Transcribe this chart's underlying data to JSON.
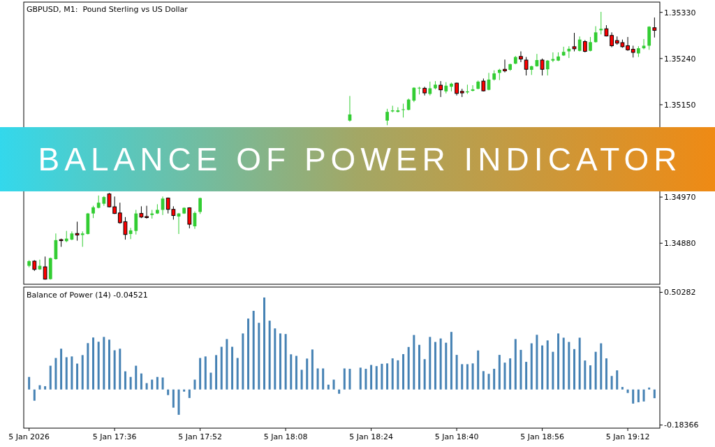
{
  "chart_data": [
    {
      "type": "candlestick",
      "title": "BALANCE OF POWER INDICATOR",
      "subtitle": "GBPUSD, M1:  Pound Sterling vs US Dollar",
      "tick_labels": "y",
      "xlim": [
        "2026-01-05T17:19",
        "2026-01-05T19:18"
      ],
      "ylim": [
        1.348,
        1.3535
      ],
      "yticks": [
        {
          "value": 1.3533,
          "label": "1.35330"
        },
        {
          "value": 1.3524,
          "label": "1.35240"
        },
        {
          "value": 1.3515,
          "label": "1.35150"
        },
        {
          "value": 1.3497,
          "label": "1.34970"
        },
        {
          "value": 1.3488,
          "label": "1.34880"
        }
      ],
      "x": [
        "2026-01-05T17:20",
        "2026-01-05T17:21",
        "2026-01-05T17:22",
        "2026-01-05T17:23",
        "2026-01-05T17:24",
        "2026-01-05T17:25",
        "2026-01-05T17:26",
        "2026-01-05T17:27",
        "2026-01-05T17:28",
        "2026-01-05T17:29",
        "2026-01-05T17:30",
        "2026-01-05T17:31",
        "2026-01-05T17:32",
        "2026-01-05T17:33",
        "2026-01-05T17:34",
        "2026-01-05T17:35",
        "2026-01-05T17:36",
        "2026-01-05T17:37",
        "2026-01-05T17:38",
        "2026-01-05T17:39",
        "2026-01-05T17:40",
        "2026-01-05T17:41",
        "2026-01-05T17:42",
        "2026-01-05T17:43",
        "2026-01-05T17:44",
        "2026-01-05T17:45",
        "2026-01-05T17:46",
        "2026-01-05T17:47",
        "2026-01-05T17:48",
        "2026-01-05T17:49",
        "2026-01-05T17:50",
        "2026-01-05T17:51",
        "2026-01-05T17:52",
        "2026-01-05T18:20",
        "2026-01-05T18:27",
        "2026-01-05T18:28",
        "2026-01-05T18:29",
        "2026-01-05T18:30",
        "2026-01-05T18:31",
        "2026-01-05T18:32",
        "2026-01-05T18:33",
        "2026-01-05T18:34",
        "2026-01-05T18:35",
        "2026-01-05T18:36",
        "2026-01-05T18:37",
        "2026-01-05T18:38",
        "2026-01-05T18:39",
        "2026-01-05T18:40",
        "2026-01-05T18:41",
        "2026-01-05T18:42",
        "2026-01-05T18:43",
        "2026-01-05T18:44",
        "2026-01-05T18:45",
        "2026-01-05T18:46",
        "2026-01-05T18:47",
        "2026-01-05T18:48",
        "2026-01-05T18:49",
        "2026-01-05T18:50",
        "2026-01-05T18:51",
        "2026-01-05T18:52",
        "2026-01-05T18:53",
        "2026-01-05T18:54",
        "2026-01-05T18:55",
        "2026-01-05T18:56",
        "2026-01-05T18:57",
        "2026-01-05T18:58",
        "2026-01-05T18:59",
        "2026-01-05T19:00",
        "2026-01-05T19:01",
        "2026-01-05T19:02",
        "2026-01-05T19:03",
        "2026-01-05T19:04",
        "2026-01-05T19:05",
        "2026-01-05T19:06",
        "2026-01-05T19:07",
        "2026-01-05T19:08",
        "2026-01-05T19:09",
        "2026-01-05T19:10",
        "2026-01-05T19:11",
        "2026-01-05T19:12",
        "2026-01-05T19:13",
        "2026-01-05T19:14",
        "2026-01-05T19:15",
        "2026-01-05T19:16",
        "2026-01-05T19:17"
      ],
      "ohlc": [
        [
          1.34836,
          1.34847,
          1.34833,
          1.34845
        ],
        [
          1.34845,
          1.34847,
          1.34826,
          1.34829
        ],
        [
          1.34829,
          1.34848,
          1.34828,
          1.34836
        ],
        [
          1.34834,
          1.34854,
          1.34809,
          1.3481
        ],
        [
          1.3481,
          1.34852,
          1.34809,
          1.34851
        ],
        [
          1.34849,
          1.34899,
          1.34848,
          1.34886
        ],
        [
          1.34887,
          1.34889,
          1.34873,
          1.34885
        ],
        [
          1.34884,
          1.34904,
          1.34882,
          1.34889
        ],
        [
          1.34887,
          1.34903,
          1.34886,
          1.34899
        ],
        [
          1.34899,
          1.34922,
          1.34885,
          1.34896
        ],
        [
          1.34896,
          1.34903,
          1.34873,
          1.34899
        ],
        [
          1.34898,
          1.34939,
          1.34897,
          1.34938
        ],
        [
          1.34938,
          1.34953,
          1.34929,
          1.3495
        ],
        [
          1.34949,
          1.34973,
          1.34948,
          1.34959
        ],
        [
          1.34957,
          1.34972,
          1.34953,
          1.3497
        ],
        [
          1.34976,
          1.34978,
          1.3495,
          1.34951
        ],
        [
          1.34951,
          1.34971,
          1.34937,
          1.34938
        ],
        [
          1.34939,
          1.34959,
          1.34918,
          1.3492
        ],
        [
          1.34922,
          1.34931,
          1.34887,
          1.34897
        ],
        [
          1.34898,
          1.3491,
          1.34888,
          1.34905
        ],
        [
          1.34904,
          1.34945,
          1.34897,
          1.34938
        ],
        [
          1.34938,
          1.34952,
          1.34929,
          1.34931
        ],
        [
          1.34932,
          1.34953,
          1.34928,
          1.3493
        ],
        [
          1.34935,
          1.34945,
          1.34928,
          1.34938
        ],
        [
          1.34938,
          1.34956,
          1.34937,
          1.34945
        ],
        [
          1.34945,
          1.34971,
          1.34935,
          1.34967
        ],
        [
          1.34968,
          1.34969,
          1.34938,
          1.34946
        ],
        [
          1.34946,
          1.34952,
          1.34926,
          1.34934
        ],
        [
          1.34932,
          1.34939,
          1.34898,
          1.34938
        ],
        [
          1.34938,
          1.3495,
          1.34937,
          1.34949
        ],
        [
          1.34949,
          1.3495,
          1.34909,
          1.34917
        ],
        [
          1.34913,
          1.34942,
          1.34908,
          1.34939
        ],
        [
          1.34941,
          1.34969,
          1.34937,
          1.34968
        ],
        [
          1.35119,
          1.35167,
          1.35117,
          1.35131
        ],
        [
          1.35119,
          1.35142,
          1.3511,
          1.35136
        ],
        [
          1.35137,
          1.35148,
          1.35135,
          1.35139
        ],
        [
          1.35136,
          1.35145,
          1.35135,
          1.35139
        ],
        [
          1.3514,
          1.35152,
          1.35125,
          1.35141
        ],
        [
          1.3514,
          1.35162,
          1.35139,
          1.3516
        ],
        [
          1.35158,
          1.35184,
          1.35155,
          1.35183
        ],
        [
          1.35182,
          1.35185,
          1.3517,
          1.35183
        ],
        [
          1.35182,
          1.35185,
          1.35168,
          1.35173
        ],
        [
          1.35171,
          1.35195,
          1.35168,
          1.35182
        ],
        [
          1.35182,
          1.35196,
          1.3518,
          1.35189
        ],
        [
          1.35188,
          1.35196,
          1.35165,
          1.35179
        ],
        [
          1.35176,
          1.35194,
          1.35172,
          1.35187
        ],
        [
          1.35185,
          1.35193,
          1.35176,
          1.35191
        ],
        [
          1.35192,
          1.35193,
          1.35168,
          1.35172
        ],
        [
          1.35176,
          1.35181,
          1.35165,
          1.35173
        ],
        [
          1.35174,
          1.35189,
          1.35171,
          1.35176
        ],
        [
          1.35177,
          1.35188,
          1.35176,
          1.3518
        ],
        [
          1.35181,
          1.35197,
          1.3518,
          1.35195
        ],
        [
          1.35196,
          1.35201,
          1.35176,
          1.35177
        ],
        [
          1.35179,
          1.35212,
          1.35178,
          1.35199
        ],
        [
          1.35199,
          1.35217,
          1.35197,
          1.35211
        ],
        [
          1.35212,
          1.3522,
          1.35198,
          1.35218
        ],
        [
          1.35219,
          1.35238,
          1.35213,
          1.35216
        ],
        [
          1.35218,
          1.3523,
          1.35216,
          1.35229
        ],
        [
          1.3523,
          1.35245,
          1.35229,
          1.35243
        ],
        [
          1.35244,
          1.35254,
          1.35233,
          1.35239
        ],
        [
          1.35237,
          1.35243,
          1.35207,
          1.35219
        ],
        [
          1.35218,
          1.35226,
          1.35208,
          1.35225
        ],
        [
          1.35225,
          1.35249,
          1.35224,
          1.35237
        ],
        [
          1.35237,
          1.3524,
          1.35207,
          1.35219
        ],
        [
          1.35219,
          1.35237,
          1.35207,
          1.35236
        ],
        [
          1.35236,
          1.35252,
          1.35233,
          1.35239
        ],
        [
          1.35236,
          1.35252,
          1.35235,
          1.35244
        ],
        [
          1.35246,
          1.35263,
          1.35245,
          1.35253
        ],
        [
          1.35254,
          1.35264,
          1.35241,
          1.35259
        ],
        [
          1.35263,
          1.3529,
          1.35254,
          1.35259
        ],
        [
          1.35255,
          1.35283,
          1.35254,
          1.35277
        ],
        [
          1.35273,
          1.35276,
          1.35252,
          1.35254
        ],
        [
          1.35255,
          1.35282,
          1.35254,
          1.35272
        ],
        [
          1.35272,
          1.35303,
          1.35271,
          1.35291
        ],
        [
          1.35295,
          1.35331,
          1.35287,
          1.35298
        ],
        [
          1.35298,
          1.35305,
          1.35283,
          1.35284
        ],
        [
          1.35285,
          1.35291,
          1.35262,
          1.35265
        ],
        [
          1.35275,
          1.35283,
          1.35267,
          1.3527
        ],
        [
          1.35271,
          1.35277,
          1.35261,
          1.35263
        ],
        [
          1.35265,
          1.35282,
          1.35255,
          1.35257
        ],
        [
          1.35258,
          1.35265,
          1.35242,
          1.35252
        ],
        [
          1.3525,
          1.35264,
          1.35243,
          1.3526
        ],
        [
          1.3526,
          1.35278,
          1.35258,
          1.35265
        ],
        [
          1.35265,
          1.35303,
          1.35257,
          1.35302
        ],
        [
          1.353,
          1.3532,
          1.35281,
          1.35295
        ]
      ]
    },
    {
      "type": "bar",
      "title": "Balance of Power (14) -0.04521",
      "color": "#4682b4",
      "xlim": [
        "2026-01-05T17:19",
        "2026-01-05T19:18"
      ],
      "ylim": [
        -0.2,
        0.53
      ],
      "yticks": [
        0.50282,
        -0.18366
      ],
      "xticks": [
        {
          "value": "2026-01-05T17:20",
          "label": "5 Jan 2026"
        },
        {
          "value": "2026-01-05T17:36",
          "label": "5 Jan 17:36"
        },
        {
          "value": "2026-01-05T17:52",
          "label": "5 Jan 17:52"
        },
        {
          "value": "2026-01-05T18:08",
          "label": "5 Jan 18:08"
        },
        {
          "value": "2026-01-05T18:24",
          "label": "5 Jan 18:24"
        },
        {
          "value": "2026-01-05T18:40",
          "label": "5 Jan 18:40"
        },
        {
          "value": "2026-01-05T18:56",
          "label": "5 Jan 18:56"
        },
        {
          "value": "2026-01-05T19:12",
          "label": "5 Jan 19:12"
        }
      ],
      "x": [
        "2026-01-05T17:20",
        "2026-01-05T17:21",
        "2026-01-05T17:22",
        "2026-01-05T17:23",
        "2026-01-05T17:24",
        "2026-01-05T17:25",
        "2026-01-05T17:26",
        "2026-01-05T17:27",
        "2026-01-05T17:28",
        "2026-01-05T17:29",
        "2026-01-05T17:30",
        "2026-01-05T17:31",
        "2026-01-05T17:32",
        "2026-01-05T17:33",
        "2026-01-05T17:34",
        "2026-01-05T17:35",
        "2026-01-05T17:36",
        "2026-01-05T17:37",
        "2026-01-05T17:38",
        "2026-01-05T17:39",
        "2026-01-05T17:40",
        "2026-01-05T17:41",
        "2026-01-05T17:42",
        "2026-01-05T17:43",
        "2026-01-05T17:44",
        "2026-01-05T17:45",
        "2026-01-05T17:46",
        "2026-01-05T17:47",
        "2026-01-05T17:48",
        "2026-01-05T17:49",
        "2026-01-05T17:50",
        "2026-01-05T17:51",
        "2026-01-05T17:52",
        "2026-01-05T17:53",
        "2026-01-05T17:54",
        "2026-01-05T17:55",
        "2026-01-05T17:56",
        "2026-01-05T17:57",
        "2026-01-05T17:58",
        "2026-01-05T17:59",
        "2026-01-05T18:00",
        "2026-01-05T18:01",
        "2026-01-05T18:02",
        "2026-01-05T18:03",
        "2026-01-05T18:04",
        "2026-01-05T18:05",
        "2026-01-05T18:06",
        "2026-01-05T18:07",
        "2026-01-05T18:08",
        "2026-01-05T18:09",
        "2026-01-05T18:10",
        "2026-01-05T18:11",
        "2026-01-05T18:12",
        "2026-01-05T18:13",
        "2026-01-05T18:14",
        "2026-01-05T18:15",
        "2026-01-05T18:16",
        "2026-01-05T18:17",
        "2026-01-05T18:18",
        "2026-01-05T18:19",
        "2026-01-05T18:20",
        "2026-01-05T18:21",
        "2026-01-05T18:22",
        "2026-01-05T18:23",
        "2026-01-05T18:24",
        "2026-01-05T18:25",
        "2026-01-05T18:26",
        "2026-01-05T18:27",
        "2026-01-05T18:28",
        "2026-01-05T18:29",
        "2026-01-05T18:30",
        "2026-01-05T18:31",
        "2026-01-05T18:32",
        "2026-01-05T18:33",
        "2026-01-05T18:34",
        "2026-01-05T18:35",
        "2026-01-05T18:36",
        "2026-01-05T18:37",
        "2026-01-05T18:38",
        "2026-01-05T18:39",
        "2026-01-05T18:40",
        "2026-01-05T18:41",
        "2026-01-05T18:42",
        "2026-01-05T18:43",
        "2026-01-05T18:44",
        "2026-01-05T18:45",
        "2026-01-05T18:46",
        "2026-01-05T18:47",
        "2026-01-05T18:48",
        "2026-01-05T18:49",
        "2026-01-05T18:50",
        "2026-01-05T18:51",
        "2026-01-05T18:52",
        "2026-01-05T18:53",
        "2026-01-05T18:54",
        "2026-01-05T18:55",
        "2026-01-05T18:56",
        "2026-01-05T18:57",
        "2026-01-05T18:58",
        "2026-01-05T18:59",
        "2026-01-05T19:00",
        "2026-01-05T19:01",
        "2026-01-05T19:02",
        "2026-01-05T19:03",
        "2026-01-05T19:04",
        "2026-01-05T19:05",
        "2026-01-05T19:06",
        "2026-01-05T19:07",
        "2026-01-05T19:08",
        "2026-01-05T19:09",
        "2026-01-05T19:10",
        "2026-01-05T19:11",
        "2026-01-05T19:12",
        "2026-01-05T19:13",
        "2026-01-05T19:14",
        "2026-01-05T19:15",
        "2026-01-05T19:16",
        "2026-01-05T19:17"
      ],
      "values": [
        0.065,
        -0.058,
        0.022,
        0.017,
        0.123,
        0.163,
        0.211,
        0.167,
        0.171,
        0.134,
        0.178,
        0.24,
        0.269,
        0.247,
        0.272,
        0.258,
        0.203,
        0.211,
        0.094,
        0.065,
        0.123,
        0.083,
        0.033,
        0.051,
        0.065,
        0.062,
        -0.029,
        -0.094,
        -0.131,
        -0.011,
        -0.044,
        0.051,
        0.163,
        0.171,
        0.087,
        0.178,
        0.221,
        0.261,
        0.221,
        0.163,
        0.29,
        0.367,
        0.407,
        0.345,
        0.476,
        0.356,
        0.316,
        0.29,
        0.287,
        0.182,
        0.174,
        0.102,
        0.16,
        0.207,
        0.109,
        0.109,
        0.025,
        0.051,
        -0.022,
        0.109,
        0.107,
        0,
        0.113,
        0.107,
        0.127,
        0.121,
        0.133,
        0.135,
        0.161,
        0.151,
        0.183,
        0.22,
        0.282,
        0.231,
        0.157,
        0.272,
        0.246,
        0.264,
        0.242,
        0.298,
        0.179,
        0.131,
        0.131,
        0.135,
        0.202,
        0.095,
        0.081,
        0.107,
        0.179,
        0.139,
        0.161,
        0.261,
        0.205,
        0.143,
        0.239,
        0.283,
        0.228,
        0.254,
        0.195,
        0.29,
        0.268,
        0.246,
        0.209,
        0.268,
        0.15,
        0.125,
        0.195,
        0.239,
        0.161,
        0.07,
        0.099,
        0.013,
        -0.018,
        -0.073,
        -0.066,
        -0.062,
        0.01,
        -0.045
      ]
    }
  ]
}
